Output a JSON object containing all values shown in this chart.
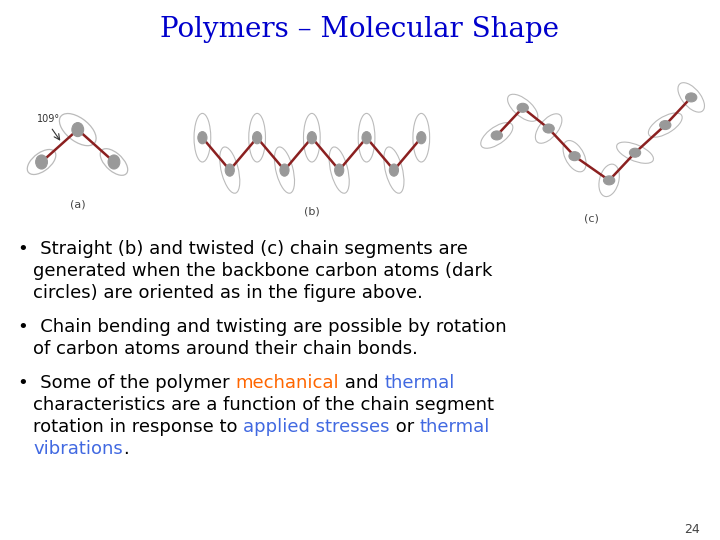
{
  "title": "Polymers – Molecular Shape",
  "title_color": "#0000CC",
  "title_fontsize": 20,
  "background_color": "#FFFFFF",
  "slide_number": "24",
  "text_fontsize": 13.0,
  "atom_color": "#999999",
  "atom_edge_color": "#555555",
  "bond_color": "#8B2020",
  "orbital_color": "#AAAAAA",
  "label_color": "#444444",
  "label_fontsize": 8,
  "angle_label": "109°"
}
